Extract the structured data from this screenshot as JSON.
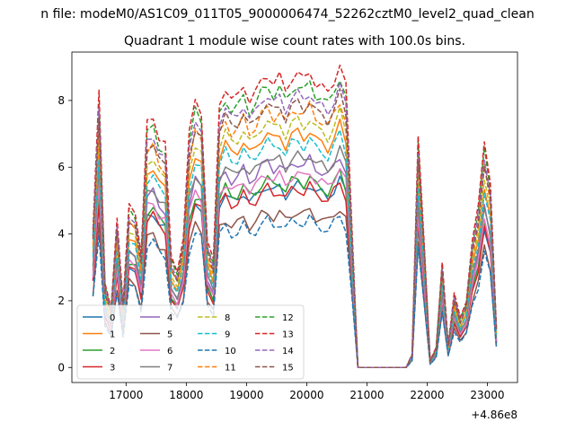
{
  "figure": {
    "suptitle": "n file: modeM0/AS1C09_011T05_9000006474_52262cztM0_level2_quad_clean",
    "title": "Quadrant 1 module wise count rates with 100.0s bins.",
    "offset_label": "+4.86e8"
  },
  "chart_data": {
    "type": "line",
    "title": "Quadrant 1 module wise count rates with 100.0s bins.",
    "xlabel": "",
    "ylabel": "",
    "x_offset": 486000000,
    "xlim": [
      16100,
      23500
    ],
    "ylim": [
      -0.45,
      9.45
    ],
    "xticks": [
      17000,
      18000,
      19000,
      20000,
      21000,
      22000,
      23000
    ],
    "yticks": [
      0,
      2,
      4,
      6,
      8
    ],
    "legend_location": "lower-left",
    "legend_ncol": 4,
    "anchor_x": [
      16450,
      16550,
      16650,
      16750,
      16850,
      16950,
      17050,
      17150,
      17250,
      17350,
      17450,
      17550,
      17650,
      17750,
      17850,
      17950,
      18050,
      18150,
      18250,
      18350,
      18450,
      18550,
      18650,
      18750,
      18850,
      18950,
      19050,
      19150,
      19250,
      19350,
      19450,
      19550,
      19650,
      19750,
      19850,
      19950,
      20050,
      20150,
      20250,
      20350,
      20450,
      20550,
      20650,
      20750,
      20850,
      21650,
      21750,
      21850,
      21950,
      22050,
      22150,
      22250,
      22350,
      22450,
      22550,
      22650,
      22750,
      22850,
      22950,
      23050,
      23150
    ],
    "series": [
      {
        "name": "0",
        "color": "#1f77b4",
        "dash": "solid",
        "scale": 0.62
      },
      {
        "name": "1",
        "color": "#ff7f0e",
        "dash": "solid",
        "scale": 0.8
      },
      {
        "name": "2",
        "color": "#2ca02c",
        "dash": "solid",
        "scale": 0.64
      },
      {
        "name": "3",
        "color": "#d62728",
        "dash": "solid",
        "scale": 0.61
      },
      {
        "name": "4",
        "color": "#9467bd",
        "dash": "solid",
        "scale": 0.7
      },
      {
        "name": "5",
        "color": "#8c564b",
        "dash": "solid",
        "scale": 0.53
      },
      {
        "name": "6",
        "color": "#e377c2",
        "dash": "solid",
        "scale": 0.66
      },
      {
        "name": "7",
        "color": "#7f7f7f",
        "dash": "solid",
        "scale": 0.72
      },
      {
        "name": "8",
        "color": "#bcbd22",
        "dash": "dashed",
        "scale": 0.84
      },
      {
        "name": "9",
        "color": "#17becf",
        "dash": "dashed",
        "scale": 0.77
      },
      {
        "name": "10",
        "color": "#1f77b4",
        "dash": "dashed",
        "scale": 0.5
      },
      {
        "name": "11",
        "color": "#ff7f0e",
        "dash": "dashed",
        "scale": 0.88
      },
      {
        "name": "12",
        "color": "#2ca02c",
        "dash": "dashed",
        "scale": 0.96
      },
      {
        "name": "13",
        "color": "#d62728",
        "dash": "dashed",
        "scale": 1.0
      },
      {
        "name": "14",
        "color": "#9467bd",
        "dash": "dashed",
        "scale": 0.93
      },
      {
        "name": "15",
        "color": "#8c564b",
        "dash": "dashed",
        "scale": 0.9
      }
    ],
    "profile": [
      4.2,
      8.2,
      2.5,
      1.8,
      4.5,
      1.9,
      4.9,
      4.7,
      3.4,
      7.3,
      7.5,
      6.9,
      6.7,
      3.3,
      2.9,
      3.9,
      7.0,
      8.0,
      7.7,
      3.8,
      3.2,
      7.9,
      8.4,
      8.0,
      8.1,
      8.5,
      8.0,
      8.2,
      8.6,
      8.8,
      8.5,
      8.7,
      8.3,
      8.7,
      8.8,
      8.6,
      8.9,
      8.5,
      8.4,
      8.2,
      8.6,
      9.1,
      8.4,
      4.2,
      0.0,
      0.0,
      0.4,
      7.0,
      3.8,
      0.2,
      0.6,
      3.2,
      0.7,
      2.2,
      1.5,
      2.0,
      3.8,
      4.8,
      6.8,
      5.6,
      1.2
    ]
  }
}
